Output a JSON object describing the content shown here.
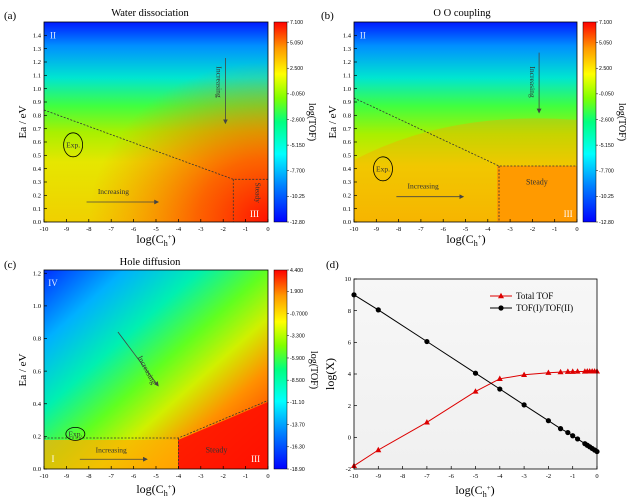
{
  "colors": {
    "map_scale": [
      "#0000ff",
      "#00bfff",
      "#00ffc0",
      "#7cfc00",
      "#ffff00",
      "#ff8c00",
      "#ff0000"
    ],
    "red_series": "#dd0000",
    "black_series": "#000000",
    "dashed_line": "#333333"
  },
  "chart_data": [
    {
      "type": "heatmap",
      "panel_label": "(a)",
      "title": "Water dissociation",
      "xlabel": "log(C",
      "xlabel_sub": "h",
      "xlabel_sup": "+",
      "xlabel_close": ")",
      "ylabel": "Ea / eV",
      "colorbar_label": "log(TOF)",
      "xlim": [
        -10,
        0
      ],
      "ylim": [
        0,
        1.5
      ],
      "x_ticks": [
        "-10",
        "-9",
        "-8",
        "-7",
        "-6",
        "-5",
        "-4",
        "-3",
        "-2",
        "-1",
        "0"
      ],
      "y_ticks": [
        "0.0",
        "0.1",
        "0.2",
        "0.3",
        "0.4",
        "0.5",
        "0.6",
        "0.7",
        "0.8",
        "0.9",
        "1.0",
        "1.1",
        "1.2",
        "1.3",
        "1.4"
      ],
      "colorbar_range": [
        -12.8,
        7.1
      ],
      "colorbar_ticks": [
        "7.100",
        "5.050",
        "2.500",
        "-0.050",
        "-2.600",
        "-5.150",
        "-7.700",
        "-10.25",
        "-12.80"
      ],
      "region_labels": [
        {
          "text": "II",
          "x": -9.6,
          "y": 1.4
        },
        {
          "text": "III",
          "x": -0.6,
          "y": 0.06
        }
      ],
      "annotations": [
        {
          "text": "Exp.",
          "x": -8.7,
          "y": 0.56,
          "circled": true
        },
        {
          "text": "Increasing",
          "x": -6.9,
          "y": 0.21,
          "arrow_from": [
            -8.1,
            0.15
          ],
          "arrow_to": [
            -4.9,
            0.15
          ]
        },
        {
          "text": "Increasing",
          "x": -2.3,
          "y": 1.05,
          "vertical": true,
          "arrow_from": [
            -1.9,
            1.23
          ],
          "arrow_to": [
            -1.9,
            0.74
          ]
        },
        {
          "text": "Steady",
          "x": -0.55,
          "y": 0.22,
          "vertical": true
        }
      ],
      "boundaries": [
        {
          "points": [
            [
              -10,
              0.84
            ],
            [
              -1.55,
              0.32
            ],
            [
              0,
              0.32
            ]
          ]
        },
        {
          "points": [
            [
              -1.55,
              0.32
            ],
            [
              -1.55,
              0.0
            ]
          ]
        }
      ]
    },
    {
      "type": "heatmap",
      "panel_label": "(b)",
      "title": "O O coupling",
      "xlabel": "log(C",
      "xlabel_sub": "h",
      "xlabel_sup": "+",
      "xlabel_close": ")",
      "ylabel": "Ea / eV",
      "colorbar_label": "log(TOF)",
      "xlim": [
        -10,
        0
      ],
      "ylim": [
        0,
        1.5
      ],
      "x_ticks": [
        "-10",
        "-9",
        "-8",
        "-7",
        "-6",
        "-5",
        "-4",
        "-3",
        "-2",
        "-1",
        "0"
      ],
      "y_ticks": [
        "0.0",
        "0.1",
        "0.2",
        "0.3",
        "0.4",
        "0.5",
        "0.6",
        "0.7",
        "0.8",
        "0.9",
        "1.0",
        "1.1",
        "1.2",
        "1.3",
        "1.4"
      ],
      "colorbar_range": [
        -12.8,
        7.1
      ],
      "colorbar_ticks": [
        "7.100",
        "5.050",
        "2.500",
        "-0.050",
        "-2.600",
        "-5.150",
        "-7.700",
        "-10.25",
        "-12.80"
      ],
      "region_labels": [
        {
          "text": "II",
          "x": -9.6,
          "y": 1.4
        },
        {
          "text": "III",
          "x": -0.4,
          "y": 0.06
        }
      ],
      "annotations": [
        {
          "text": "Exp.",
          "x": -8.7,
          "y": 0.38,
          "circled": true
        },
        {
          "text": "Increasing",
          "x": -6.9,
          "y": 0.25,
          "arrow_from": [
            -8.1,
            0.19
          ],
          "arrow_to": [
            -5.1,
            0.19
          ]
        },
        {
          "text": "Increasing",
          "x": -2.1,
          "y": 1.05,
          "vertical": true,
          "arrow_from": [
            -1.7,
            1.27
          ],
          "arrow_to": [
            -1.7,
            0.82
          ]
        },
        {
          "text": "Steady",
          "x": -1.8,
          "y": 0.28
        }
      ],
      "boundaries": [
        {
          "points": [
            [
              -10,
              0.93
            ],
            [
              -3.5,
              0.42
            ],
            [
              0,
              0.42
            ]
          ]
        },
        {
          "points": [
            [
              -3.5,
              0.42
            ],
            [
              -3.5,
              0.0
            ]
          ]
        }
      ]
    },
    {
      "type": "heatmap",
      "panel_label": "(c)",
      "title": "Hole diffusion",
      "xlabel": "log(C",
      "xlabel_sub": "h",
      "xlabel_sup": "+",
      "xlabel_close": ")",
      "ylabel": "Ea / eV",
      "colorbar_label": "log(TOF)",
      "xlim": [
        -10,
        0
      ],
      "ylim": [
        0,
        1.22
      ],
      "x_ticks": [
        "-10",
        "-9",
        "-8",
        "-7",
        "-6",
        "-5",
        "-4",
        "-3",
        "-2",
        "-1",
        "0"
      ],
      "y_ticks": [
        "0.0",
        "0.2",
        "0.4",
        "0.6",
        "0.8",
        "1.0",
        "1.2"
      ],
      "colorbar_range": [
        -18.9,
        4.4
      ],
      "colorbar_ticks": [
        "4.400",
        "1.900",
        "-0.7000",
        "-3.300",
        "-5.900",
        "-8.500",
        "-11.10",
        "-13.70",
        "-16.30",
        "-18.90"
      ],
      "region_labels": [
        {
          "text": "IV",
          "x": -9.6,
          "y": 1.14
        },
        {
          "text": "I",
          "x": -9.6,
          "y": 0.06
        },
        {
          "text": "III",
          "x": -0.55,
          "y": 0.06
        }
      ],
      "annotations": [
        {
          "text": "Exp.",
          "x": -8.6,
          "y": 0.2,
          "circled": true
        },
        {
          "text": "Increasing",
          "x": -7.0,
          "y": 0.1,
          "arrow_from": [
            -8.4,
            0.06
          ],
          "arrow_to": [
            -5.4,
            0.06
          ]
        },
        {
          "text": "Increasing",
          "x": -5.5,
          "y": 0.6,
          "rotated": true,
          "arrow_from": [
            -6.7,
            0.84
          ],
          "arrow_to": [
            -4.9,
            0.51
          ]
        },
        {
          "text": "Steady",
          "x": -2.3,
          "y": 0.1
        }
      ],
      "boundaries": [
        {
          "points": [
            [
              -10,
              0.19
            ],
            [
              -4.0,
              0.19
            ],
            [
              0,
              0.42
            ]
          ]
        },
        {
          "points": [
            [
              -4.0,
              0.19
            ],
            [
              -4.0,
              0.0
            ]
          ]
        }
      ]
    },
    {
      "type": "line",
      "panel_label": "(d)",
      "xlabel": "log(C",
      "xlabel_sub": "h",
      "xlabel_sup": "+",
      "xlabel_close": ")",
      "ylabel": "log(X)",
      "xlim": [
        -10,
        0
      ],
      "ylim": [
        -2,
        10
      ],
      "x_ticks": [
        "-10",
        "-9",
        "-8",
        "-7",
        "-6",
        "-5",
        "-4",
        "-3",
        "-2",
        "-1",
        "0"
      ],
      "y_ticks": [
        "-2",
        "0",
        "2",
        "4",
        "6",
        "8",
        "10"
      ],
      "legend_position": "top-right",
      "series": [
        {
          "name": "Total TOF",
          "marker": "triangle",
          "color": "#dd0000",
          "x": [
            -10,
            -9,
            -7,
            -5,
            -4,
            -3,
            -2,
            -1.5,
            -1.2,
            -1,
            -0.8,
            -0.5,
            -0.4,
            -0.3,
            -0.2,
            -0.1,
            0
          ],
          "y": [
            -1.8,
            -0.8,
            0.95,
            2.9,
            3.7,
            3.95,
            4.08,
            4.12,
            4.15,
            4.15,
            4.16,
            4.16,
            4.17,
            4.17,
            4.17,
            4.17,
            4.17
          ]
        },
        {
          "name": "TOF(I)/TOF(II)",
          "marker": "circle",
          "color": "#000000",
          "x": [
            -10,
            -9,
            -7,
            -5,
            -4,
            -3,
            -2,
            -1.5,
            -1.2,
            -1,
            -0.8,
            -0.5,
            -0.4,
            -0.3,
            -0.2,
            -0.1,
            0
          ],
          "y": [
            9.0,
            8.05,
            6.05,
            4.05,
            3.05,
            2.05,
            1.05,
            0.55,
            0.3,
            0.1,
            -0.1,
            -0.4,
            -0.5,
            -0.6,
            -0.7,
            -0.8,
            -0.9
          ]
        }
      ]
    }
  ]
}
